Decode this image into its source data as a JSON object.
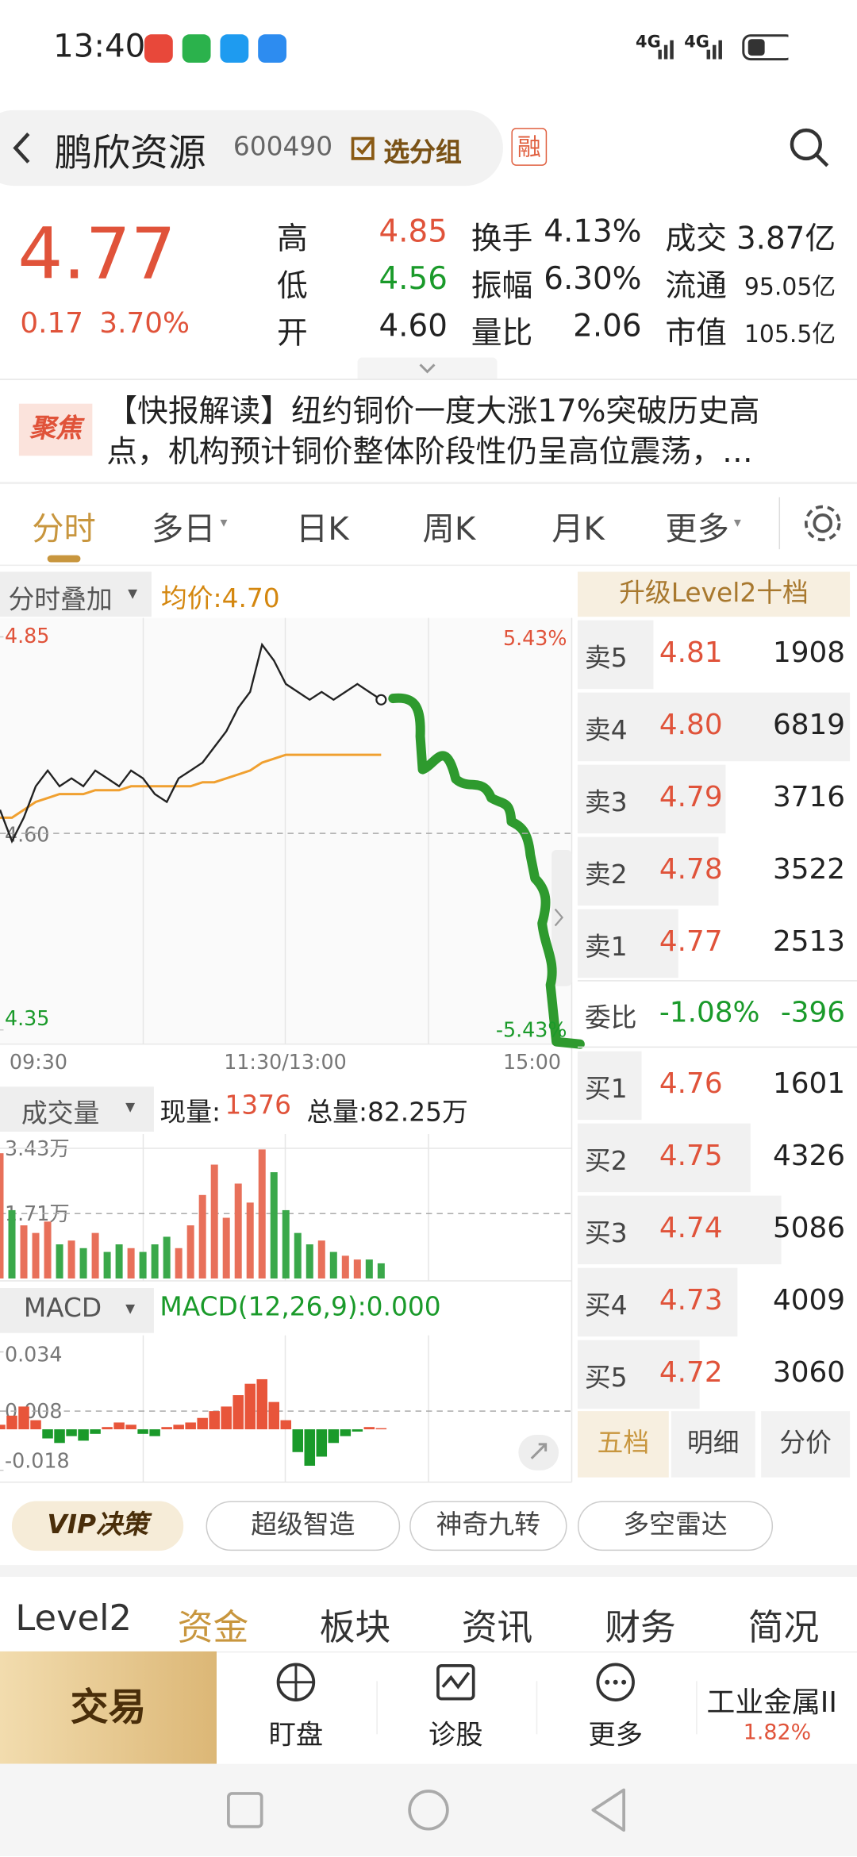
{
  "status_bar": {
    "time": "13:40",
    "network": [
      "4G",
      "4G"
    ]
  },
  "header": {
    "name": "鹏欣资源",
    "code": "600490",
    "group_button": "选分组",
    "margin_badge": "融"
  },
  "quote": {
    "price": "4.77",
    "change": "0.17",
    "change_pct": "3.70%",
    "stats": [
      {
        "label": "高",
        "value": "4.85"
      },
      {
        "label": "低",
        "value": "4.56"
      },
      {
        "label": "开",
        "value": "4.60"
      },
      {
        "label": "换手",
        "value": "4.13%"
      },
      {
        "label": "振幅",
        "value": "6.30%"
      },
      {
        "label": "量比",
        "value": "2.06"
      },
      {
        "label": "成交",
        "value": "3.87亿"
      },
      {
        "label": "流通",
        "value": "95.05亿"
      },
      {
        "label": "市值",
        "value": "105.5亿"
      }
    ]
  },
  "news": {
    "badge": "聚焦",
    "text": "【快报解读】纽约铜价一度大涨17%突破历史高点，机构预计铜价整体阶段性仍呈高位震荡，…"
  },
  "chart_tabs": [
    "分时",
    "多日",
    "日K",
    "周K",
    "月K",
    "更多"
  ],
  "intraday": {
    "overlay_button": "分时叠加",
    "avg_label": "均价:4.70",
    "ylim": [
      4.35,
      4.85
    ],
    "yticks": [
      4.35,
      {
        "value": 4.6,
        "label": "4.60"
      },
      4.85
    ],
    "pct_labels": [
      "5.43%",
      "-5.43%"
    ],
    "time_labels": [
      "09:30",
      "11:30/13:00",
      "15:00"
    ],
    "xlim": [
      0,
      240
    ],
    "x": [
      0,
      5,
      10,
      15,
      20,
      25,
      30,
      35,
      40,
      45,
      50,
      55,
      60,
      65,
      70,
      75,
      80,
      85,
      90,
      95,
      100,
      105,
      110,
      115,
      120,
      125,
      130,
      135,
      140,
      145,
      150,
      155,
      160
    ],
    "price": [
      4.63,
      4.59,
      4.62,
      4.66,
      4.68,
      4.66,
      4.67,
      4.66,
      4.68,
      4.67,
      4.66,
      4.68,
      4.67,
      4.65,
      4.64,
      4.67,
      4.68,
      4.69,
      4.71,
      4.73,
      4.76,
      4.78,
      4.84,
      4.82,
      4.79,
      4.78,
      4.77,
      4.78,
      4.77,
      4.78,
      4.79,
      4.78,
      4.77
    ],
    "avg": [
      4.62,
      4.62,
      4.63,
      4.64,
      4.645,
      4.65,
      4.65,
      4.65,
      4.655,
      4.655,
      4.655,
      4.66,
      4.66,
      4.66,
      4.66,
      4.66,
      4.66,
      4.665,
      4.665,
      4.67,
      4.675,
      4.68,
      4.69,
      4.695,
      4.7,
      4.7,
      4.7,
      4.7,
      4.7,
      4.7,
      4.7,
      4.7,
      4.7
    ]
  },
  "volume": {
    "button": "成交量",
    "current_label": "现量:",
    "current": "1376",
    "total": "总量:82.25万",
    "ylim": [
      0,
      34300
    ],
    "yticks": [
      {
        "value": 34300,
        "label": "3.43万"
      },
      {
        "value": 17100,
        "label": "1.71万"
      }
    ],
    "values": [
      33000,
      18000,
      14000,
      12000,
      15000,
      9000,
      10000,
      8000,
      12000,
      7000,
      9000,
      8000,
      7000,
      9000,
      11000,
      8000,
      14000,
      22000,
      30000,
      16000,
      25000,
      20000,
      34000,
      28000,
      18000,
      12000,
      9000,
      10000,
      7000,
      6000,
      5000,
      5000,
      4000
    ]
  },
  "macd": {
    "button": "MACD",
    "label": "MACD(12,26,9):0.000",
    "ylim": [
      -0.018,
      0.034
    ],
    "yticks": [
      0.034,
      0.008,
      -0.018
    ],
    "values": [
      0.002,
      0.006,
      0.01,
      0.004,
      -0.004,
      -0.006,
      -0.003,
      -0.005,
      -0.002,
      0.001,
      0.003,
      0.002,
      -0.002,
      -0.003,
      0.001,
      0.002,
      0.003,
      0.005,
      0.008,
      0.01,
      0.015,
      0.02,
      0.022,
      0.012,
      0.004,
      -0.01,
      -0.016,
      -0.012,
      -0.006,
      -0.003,
      -0.001,
      0.001,
      0.0005
    ]
  },
  "order_book": {
    "upgrade": "升级Level2十档",
    "asks": [
      {
        "label": "卖5",
        "price": "4.81",
        "volume": 1908
      },
      {
        "label": "卖4",
        "price": "4.80",
        "volume": 6819
      },
      {
        "label": "卖3",
        "price": "4.79",
        "volume": 3716
      },
      {
        "label": "卖2",
        "price": "4.78",
        "volume": 3522
      },
      {
        "label": "卖1",
        "price": "4.77",
        "volume": 2513
      }
    ],
    "ratio": {
      "label": "委比",
      "pct": "-1.08%",
      "diff": "-396"
    },
    "bids": [
      {
        "label": "买1",
        "price": "4.76",
        "volume": 1601
      },
      {
        "label": "买2",
        "price": "4.75",
        "volume": 4326
      },
      {
        "label": "买3",
        "price": "4.74",
        "volume": 5086
      },
      {
        "label": "买4",
        "price": "4.73",
        "volume": 4009
      },
      {
        "label": "买5",
        "price": "4.72",
        "volume": 3060
      }
    ],
    "tabs": [
      "五档",
      "明细",
      "分价"
    ]
  },
  "tools": [
    "VIP决策",
    "超级智造",
    "神奇九转",
    "多空雷达"
  ],
  "section_tabs": [
    "Level2",
    "资金",
    "板块",
    "资讯",
    "财务",
    "简况"
  ],
  "bottom_nav": {
    "trade": "交易",
    "items": [
      "盯盘",
      "诊股",
      "更多"
    ],
    "sector": "工业金属II",
    "sector_change": "1.82%"
  }
}
